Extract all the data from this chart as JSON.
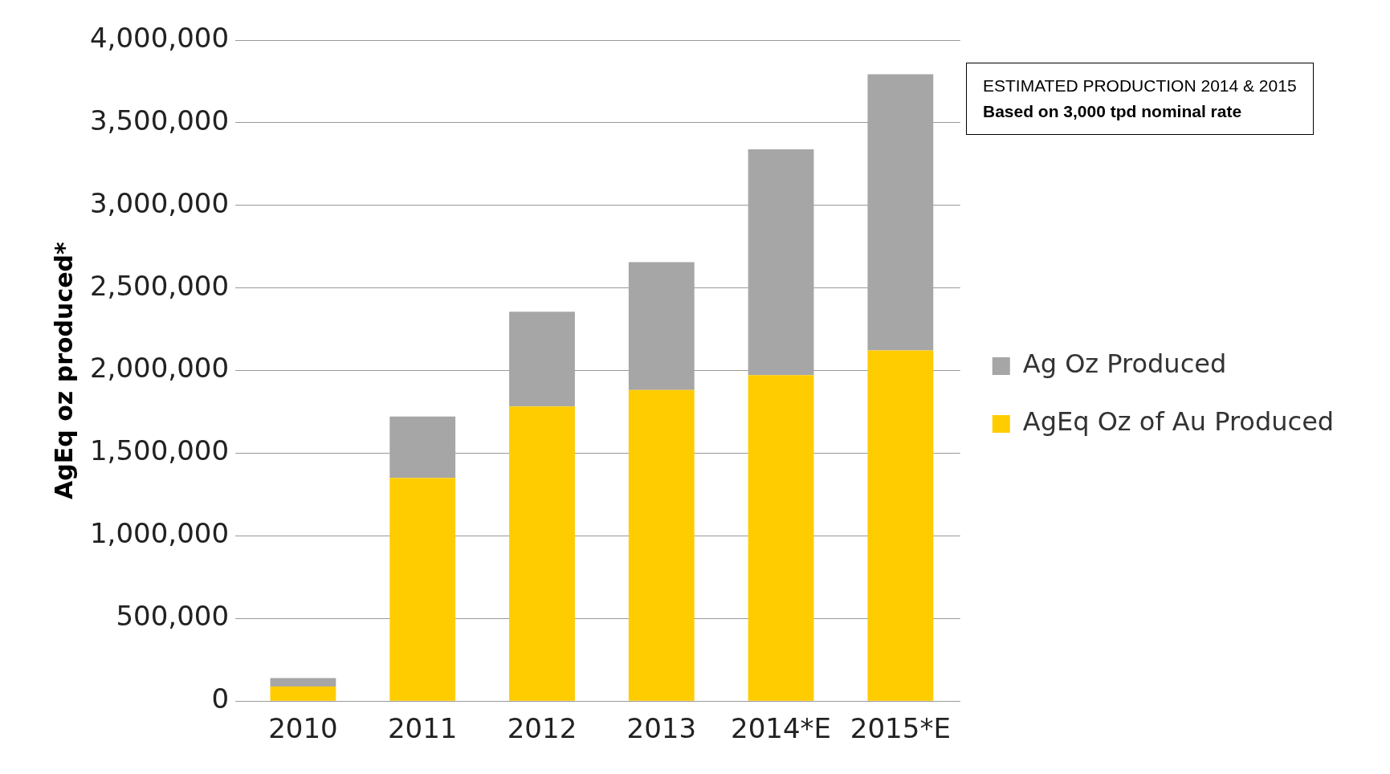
{
  "chart_data": {
    "type": "bar",
    "stacked": true,
    "ylabel": "AgEq oz produced*",
    "categories": [
      "2010",
      "2011",
      "2012",
      "2013",
      "2014*E",
      "2015*E"
    ],
    "series": [
      {
        "name": "AgEq Oz of Au Produced",
        "color": "#ffcc00",
        "values": [
          89000,
          1350000,
          1783000,
          1883000,
          1972000,
          2122000
        ]
      },
      {
        "name": "Ag Oz Produced",
        "color": "#a6a6a6",
        "values": [
          50000,
          372000,
          573000,
          773000,
          1367000,
          1672000
        ]
      }
    ],
    "ylim": [
      0,
      4000000
    ],
    "yticks": [
      0,
      {
        "value": 500000,
        "label": "500,000"
      },
      {
        "value": 1000000,
        "label": "1,000,000"
      },
      {
        "value": 1500000,
        "label": "1,500,000"
      },
      {
        "value": 2000000,
        "label": "2,000,000"
      },
      {
        "value": 2500000,
        "label": "2,500,000"
      },
      {
        "value": 3000000,
        "label": "3,000,000"
      },
      {
        "value": 3500000,
        "label": "3,500,000"
      },
      {
        "value": 4000000,
        "label": "4,000,000"
      }
    ],
    "grid": "y",
    "legend": "right",
    "annotations": [
      "ESTIMATED PRODUCTION 2014 & 2015",
      "Based on 3,000 tpd nominal rate"
    ]
  }
}
